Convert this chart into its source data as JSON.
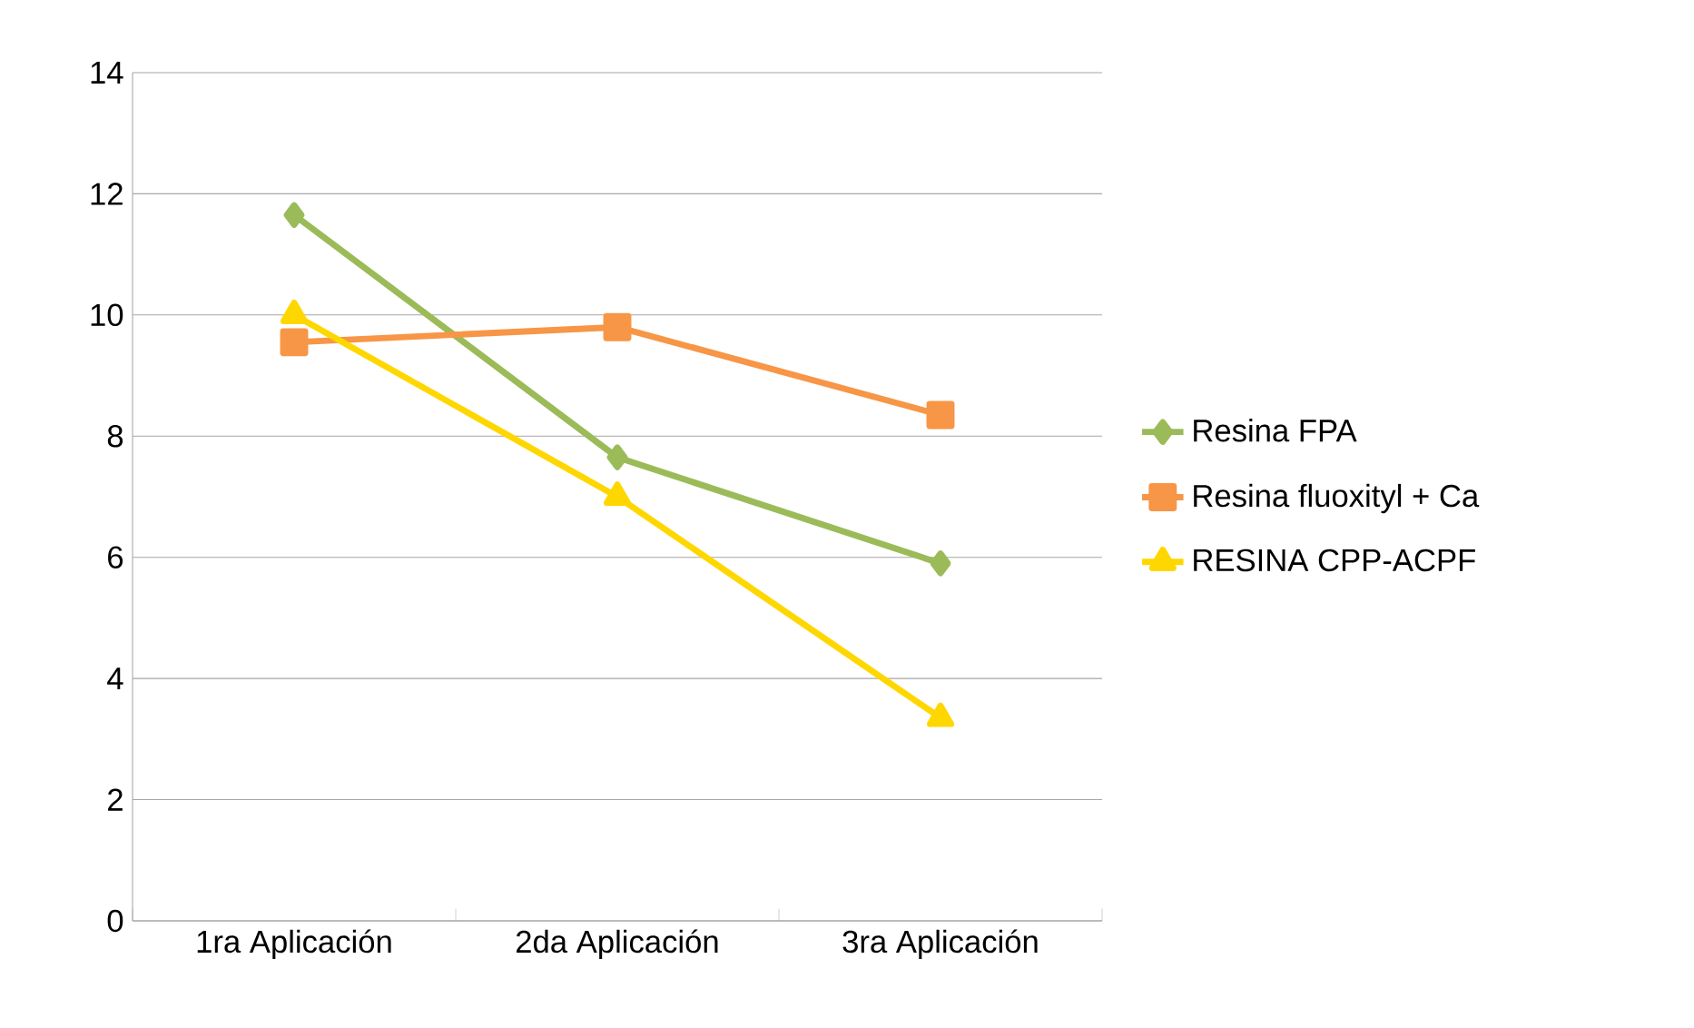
{
  "chart_data": {
    "type": "line",
    "categories": [
      "1ra Aplicación",
      "2da Aplicación",
      "3ra Aplicación"
    ],
    "series": [
      {
        "name": "Resina FPA",
        "color": "#9bbb59",
        "marker": "diamond",
        "values": [
          11.65,
          7.65,
          5.9
        ]
      },
      {
        "name": "Resina fluoxityl + Ca",
        "color": "#f79646",
        "marker": "square",
        "values": [
          9.55,
          9.8,
          8.35
        ]
      },
      {
        "name": "RESINA CPP-ACPF",
        "color": "#ffd700",
        "marker": "triangle",
        "values": [
          10.0,
          7.0,
          3.35
        ]
      }
    ],
    "ylim": [
      0,
      14
    ],
    "yticks": [
      0,
      2,
      4,
      6,
      8,
      10,
      12,
      14
    ],
    "grid": "y",
    "legend": "right",
    "line_style": "solid"
  }
}
